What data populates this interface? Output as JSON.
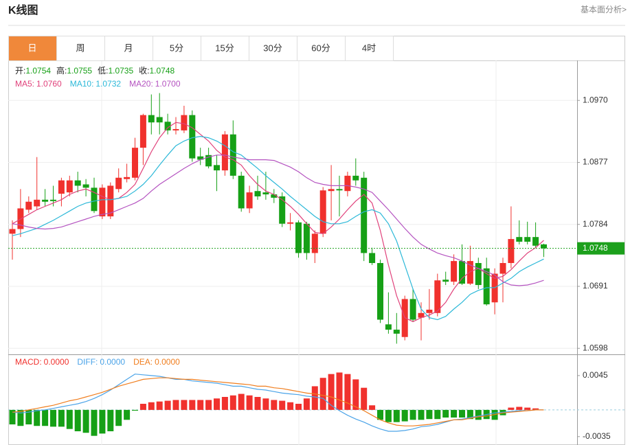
{
  "header": {
    "title": "K线图",
    "link": "基本面分析>"
  },
  "tabs": {
    "items": [
      "日",
      "周",
      "月",
      "5分",
      "15分",
      "30分",
      "60分",
      "4时"
    ],
    "active": 0
  },
  "chart_data": [
    {
      "type": "candlestick",
      "summary": [
        {
          "label": "开:",
          "value": 1.0754
        },
        {
          "label": "高:",
          "value": 1.0755
        },
        {
          "label": "低:",
          "value": 1.0735
        },
        {
          "label": "收:",
          "value": 1.0748
        }
      ],
      "up_color": "#f0312d",
      "down_color": "#16a016",
      "open": [
        1.077,
        1.0777,
        1.0806,
        1.0811,
        1.0821,
        1.0821,
        1.083,
        1.0832,
        1.085,
        1.0844,
        1.0839,
        1.0796,
        1.0796,
        1.0837,
        1.0852,
        1.0854,
        1.0899,
        1.0948,
        1.0945,
        1.0938,
        1.0925,
        1.0925,
        1.0948,
        1.0886,
        1.0888,
        1.0873,
        1.0865,
        1.0919,
        1.0857,
        1.0808,
        1.0834,
        1.0832,
        1.0829,
        1.0826,
        1.0785,
        1.0787,
        1.0785,
        1.0741,
        1.077,
        1.0834,
        1.0837,
        1.0834,
        1.0857,
        1.0854,
        1.0741,
        1.0726,
        1.0634,
        1.0626,
        1.0615,
        1.0672,
        1.0644,
        1.0651,
        1.0651,
        1.0701,
        1.0698,
        1.0729,
        1.0695,
        1.0726,
        1.0718,
        1.0667,
        1.071,
        1.0726,
        1.0765,
        1.0765,
        1.0765,
        1.0754
      ],
      "close": [
        1.0777,
        1.0808,
        1.0818,
        1.0821,
        1.0818,
        1.0819,
        1.085,
        1.085,
        1.0842,
        1.0839,
        1.0804,
        1.0839,
        1.0842,
        1.0854,
        1.0855,
        1.0899,
        1.0948,
        1.0937,
        1.0937,
        1.0925,
        1.0927,
        1.0948,
        1.0883,
        1.0881,
        1.0871,
        1.0865,
        1.0919,
        1.0857,
        1.0808,
        1.0832,
        1.0826,
        1.0829,
        1.0824,
        1.0785,
        1.0787,
        1.0741,
        1.0741,
        1.077,
        1.0835,
        1.0837,
        1.0835,
        1.0857,
        1.085,
        1.0741,
        1.0726,
        1.0641,
        1.0626,
        1.062,
        1.0672,
        1.0641,
        1.0651,
        1.0656,
        1.07,
        1.0698,
        1.0729,
        1.0695,
        1.0729,
        1.0693,
        1.0664,
        1.071,
        1.0726,
        1.0762,
        1.0758,
        1.0758,
        1.0752,
        1.0748
      ],
      "high": [
        1.079,
        1.0837,
        1.0826,
        1.0885,
        1.0837,
        1.0842,
        1.0854,
        1.0857,
        1.0863,
        1.0852,
        1.0854,
        1.0844,
        1.0847,
        1.0868,
        1.0875,
        1.0914,
        1.095,
        1.0979,
        1.0981,
        1.095,
        1.0945,
        1.0962,
        1.0955,
        1.0899,
        1.0899,
        1.0888,
        1.0924,
        1.094,
        1.0863,
        1.0842,
        1.0857,
        1.0863,
        1.0837,
        1.0832,
        1.0801,
        1.079,
        1.0788,
        1.0775,
        1.084,
        1.0873,
        1.0857,
        1.0863,
        1.0883,
        1.0863,
        1.0749,
        1.0731,
        1.0682,
        1.0651,
        1.0677,
        1.0687,
        1.0667,
        1.0687,
        1.071,
        1.0713,
        1.0739,
        1.0754,
        1.0752,
        1.0734,
        1.0734,
        1.0718,
        1.0734,
        1.0811,
        1.079,
        1.0788,
        1.0787,
        1.0755
      ],
      "low": [
        1.0731,
        1.0765,
        1.0801,
        1.0806,
        1.0811,
        1.0811,
        1.0811,
        1.0826,
        1.0832,
        1.0826,
        1.0801,
        1.0792,
        1.0792,
        1.0832,
        1.0847,
        1.085,
        1.0873,
        1.0919,
        1.0919,
        1.0919,
        1.0919,
        1.0921,
        1.0878,
        1.0873,
        1.0868,
        1.0834,
        1.0857,
        1.0852,
        1.0803,
        1.0801,
        1.0821,
        1.0821,
        1.0816,
        1.078,
        1.0775,
        1.0734,
        1.0731,
        1.0726,
        1.0765,
        1.079,
        1.0796,
        1.0826,
        1.0842,
        1.0729,
        1.0723,
        1.0636,
        1.062,
        1.0605,
        1.061,
        1.0638,
        1.061,
        1.0641,
        1.0646,
        1.0693,
        1.0693,
        1.0693,
        1.0693,
        1.0687,
        1.0662,
        1.0649,
        1.0667,
        1.0718,
        1.0754,
        1.0754,
        1.0749,
        1.0735
      ],
      "series": [
        {
          "name": "MA5:",
          "color": "#e0407a",
          "last": {
            "value": 1.076,
            "label": "1.0760"
          },
          "values": [
            1.0785,
            1.0792,
            1.0799,
            1.0806,
            1.0811,
            1.0816,
            1.0821,
            1.0829,
            1.0834,
            1.0837,
            1.0832,
            1.0826,
            1.0821,
            1.0823,
            1.0832,
            1.0844,
            1.0868,
            1.0893,
            1.0914,
            1.0929,
            1.0937,
            1.0935,
            1.0929,
            1.0919,
            1.0909,
            1.0895,
            1.0885,
            1.0881,
            1.0873,
            1.0857,
            1.0844,
            1.0834,
            1.0829,
            1.0821,
            1.0811,
            1.0799,
            1.0785,
            1.0772,
            1.077,
            1.078,
            1.0792,
            1.0806,
            1.0819,
            1.0829,
            1.0816,
            1.0775,
            1.0723,
            1.0677,
            1.0644,
            1.0638,
            1.0644,
            1.0648,
            1.0654,
            1.0667,
            1.0687,
            1.0703,
            1.0713,
            1.0718,
            1.071,
            1.0703,
            1.0706,
            1.0716,
            1.0729,
            1.0741,
            1.0749,
            1.076
          ]
        },
        {
          "name": "MA10:",
          "color": "#2bb8d8",
          "last": {
            "value": 1.0732,
            "label": "1.0732"
          },
          "values": [
            1.0767,
            1.077,
            1.0774,
            1.0778,
            1.0784,
            1.079,
            1.0797,
            1.0804,
            1.0811,
            1.0816,
            1.0819,
            1.0821,
            1.0821,
            1.0823,
            1.0826,
            1.0834,
            1.0844,
            1.0857,
            1.0873,
            1.0888,
            1.0902,
            1.0909,
            1.0914,
            1.0916,
            1.0914,
            1.0909,
            1.0902,
            1.0893,
            1.0888,
            1.0878,
            1.0868,
            1.0857,
            1.0847,
            1.0837,
            1.0826,
            1.0816,
            1.0806,
            1.0796,
            1.0788,
            1.0785,
            1.0785,
            1.0788,
            1.0796,
            1.0803,
            1.0806,
            1.0801,
            1.0785,
            1.0759,
            1.0723,
            1.0687,
            1.0657,
            1.0644,
            1.0641,
            1.0646,
            1.0657,
            1.0667,
            1.0679,
            1.0685,
            1.0689,
            1.0689,
            1.0696,
            1.0703,
            1.0713,
            1.072,
            1.0726,
            1.0732
          ]
        },
        {
          "name": "MA20:",
          "color": "#b452c0",
          "last": {
            "value": 1.07,
            "label": "1.0700"
          },
          "values": [
            1.0785,
            1.0783,
            1.078,
            1.0778,
            1.0777,
            1.0778,
            1.078,
            1.0784,
            1.0788,
            1.0792,
            1.0796,
            1.0799,
            1.0801,
            1.0806,
            1.0811,
            1.0816,
            1.0823,
            1.0834,
            1.0844,
            1.0852,
            1.086,
            1.0868,
            1.0875,
            1.0881,
            1.0885,
            1.0888,
            1.0888,
            1.0885,
            1.0883,
            1.0881,
            1.0881,
            1.0881,
            1.088,
            1.0875,
            1.087,
            1.0863,
            1.0854,
            1.0847,
            1.0844,
            1.0842,
            1.0842,
            1.0842,
            1.084,
            1.0837,
            1.0832,
            1.0819,
            1.0806,
            1.0792,
            1.0778,
            1.0765,
            1.0754,
            1.0747,
            1.0741,
            1.0737,
            1.0734,
            1.0729,
            1.0723,
            1.0718,
            1.0713,
            1.0708,
            1.0698,
            1.0693,
            1.0692,
            1.0693,
            1.0696,
            1.07
          ]
        }
      ],
      "current": {
        "value": 1.0748,
        "color": "#1ca01c"
      },
      "ylim": [
        1.059,
        1.103
      ],
      "yticks": [
        {
          "value": 1.097,
          "label": "1.0970"
        },
        1.0877,
        1.0784,
        1.0691,
        1.0598
      ],
      "grid": true
    },
    {
      "type": "macd",
      "series": [
        {
          "name": "MACD:",
          "color": "#f0312d",
          "down_color": "#16a016",
          "last": {
            "value": 0,
            "label": "0.0000"
          },
          "values": [
            -0.0019,
            -0.0021,
            -0.0019,
            -0.0021,
            -0.0021,
            -0.0022,
            -0.0022,
            -0.0025,
            -0.0028,
            -0.003,
            -0.0034,
            -0.0031,
            -0.0028,
            -0.0021,
            -0.0013,
            -0.0001,
            0.0008,
            0.001,
            0.0011,
            0.0012,
            0.0013,
            0.0013,
            0.0013,
            0.0013,
            0.0013,
            0.0015,
            0.0017,
            0.0019,
            0.0021,
            0.0019,
            0.0017,
            0.0015,
            0.0013,
            0.0012,
            0.001,
            0.0008,
            0.0015,
            0.0031,
            0.0042,
            0.0047,
            0.0049,
            0.0047,
            0.004,
            0.0029,
            0.0006,
            -0.0013,
            -0.0016,
            -0.0016,
            -0.0015,
            -0.0013,
            -0.0013,
            -0.0012,
            -0.0012,
            -0.001,
            -0.001,
            -0.001,
            -0.0012,
            -0.0013,
            -0.0012,
            -0.0013,
            -0.0007,
            0.0003,
            0.0004,
            0.0003,
            0.0002,
            0
          ]
        },
        {
          "name": "DIFF:",
          "color": "#4aa3e8",
          "last": {
            "value": 0,
            "label": "0.0000"
          },
          "values": [
            -0.0003,
            -0.0004,
            -0.0003,
            -0.0001,
            0,
            0.0002,
            0.0004,
            0.0006,
            0.0008,
            0.0011,
            0.0015,
            0.002,
            0.0026,
            0.0033,
            0.004,
            0.0047,
            0.0046,
            0.0045,
            0.0044,
            0.0042,
            0.004,
            0.004,
            0.0038,
            0.0037,
            0.0036,
            0.0035,
            0.0033,
            0.0031,
            0.0031,
            0.0029,
            0.0027,
            0.0026,
            0.0024,
            0.0022,
            0.0021,
            0.002,
            0.0018,
            0.0017,
            0.0015,
            0.0006,
            -0.0001,
            -0.0007,
            -0.0012,
            -0.0016,
            -0.0021,
            -0.0025,
            -0.0028,
            -0.0028,
            -0.0027,
            -0.0025,
            -0.0022,
            -0.0021,
            -0.0019,
            -0.0016,
            -0.0013,
            -0.0012,
            -0.001,
            -0.0008,
            -0.0006,
            -0.0004,
            -0.0003,
            -0.0002,
            -0.0001,
            -0.0001,
            0,
            0
          ]
        },
        {
          "name": "DEA:",
          "color": "#f07d1d",
          "last": {
            "value": 0,
            "label": "0.0000"
          },
          "values": [
            -0.0003,
            -0.0002,
            0,
            0.0002,
            0.0004,
            0.0006,
            0.0009,
            0.0012,
            0.0014,
            0.0017,
            0.002,
            0.0023,
            0.0027,
            0.0031,
            0.0034,
            0.0037,
            0.004,
            0.0041,
            0.0042,
            0.0042,
            0.0041,
            0.004,
            0.004,
            0.0039,
            0.0038,
            0.0037,
            0.0036,
            0.0035,
            0.0034,
            0.0033,
            0.0031,
            0.0031,
            0.0029,
            0.0028,
            0.0026,
            0.0024,
            0.0022,
            0.0021,
            0.0019,
            0.0017,
            0.0013,
            0.0009,
            0.0004,
            -0.0001,
            -0.0007,
            -0.0013,
            -0.0017,
            -0.002,
            -0.0021,
            -0.0021,
            -0.002,
            -0.0019,
            -0.0017,
            -0.0015,
            -0.0013,
            -0.0013,
            -0.0011,
            -0.0009,
            -0.0008,
            -0.0006,
            -0.0004,
            -0.0003,
            -0.0002,
            -0.0001,
            0,
            0
          ]
        }
      ],
      "ylim": [
        -0.0046,
        0.0071
      ],
      "yticks": [
        0.0045,
        -0.0035
      ]
    }
  ]
}
